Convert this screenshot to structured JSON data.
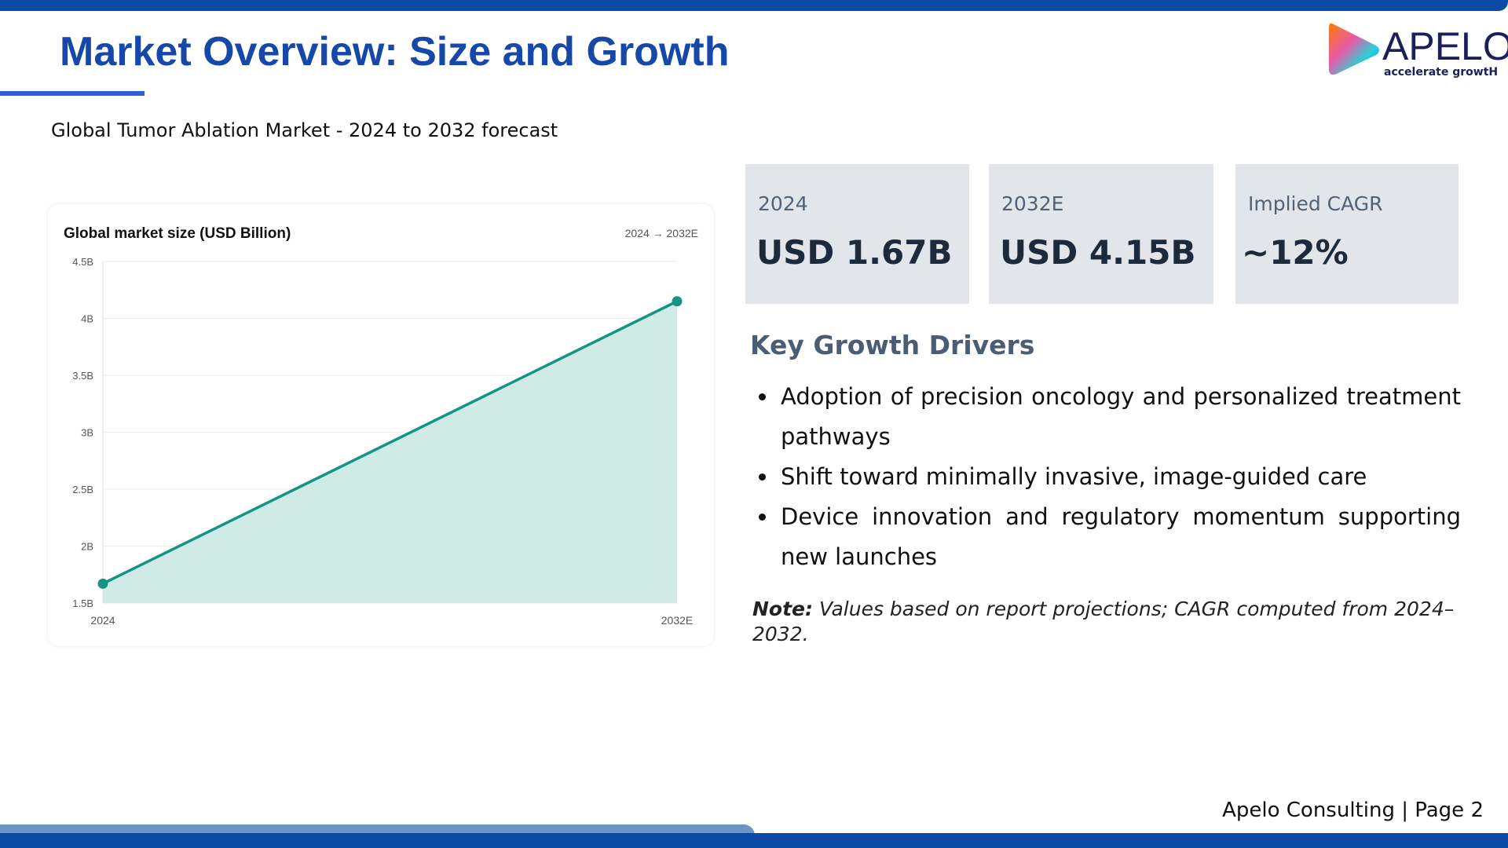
{
  "header": {
    "title": "Market Overview: Size and Growth",
    "subtitle": "Global Tumor Ablation Market - 2024 to 2032 forecast"
  },
  "logo": {
    "text": "APELO",
    "tagline": "accelerate growtH"
  },
  "chart_data": {
    "type": "area",
    "title": "Global market size (USD Billion)",
    "range_label": "2024 → 2032E",
    "categories": [
      "2024",
      "2032E"
    ],
    "values": [
      1.67,
      4.15
    ],
    "ylim": [
      1.5,
      4.5
    ],
    "yticks": [
      "1.5B",
      "2B",
      "2.5B",
      "3B",
      "3.5B",
      "4B",
      "4.5B"
    ],
    "ytick_values": [
      1.5,
      2,
      2.5,
      3,
      3.5,
      4,
      4.5
    ],
    "grid": true,
    "colors": {
      "line": "#159483",
      "fill": "#d0ebe6"
    }
  },
  "stats": [
    {
      "label": "2024",
      "value": "USD 1.67B"
    },
    {
      "label": "2032E",
      "value": "USD 4.15B"
    },
    {
      "label": "Implied CAGR",
      "value": "~12%"
    }
  ],
  "drivers": {
    "heading": "Key Growth Drivers",
    "items": [
      "Adoption of precision oncology and personalized treatment pathways",
      "Shift toward minimally invasive, image-guided care",
      "Device innovation and regulatory momentum supporting new launches"
    ]
  },
  "note": {
    "label": "Note:",
    "text": " Values based on report projections; CAGR computed from 2024–2032."
  },
  "footer": {
    "text": "Apelo Consulting | Page 2"
  }
}
